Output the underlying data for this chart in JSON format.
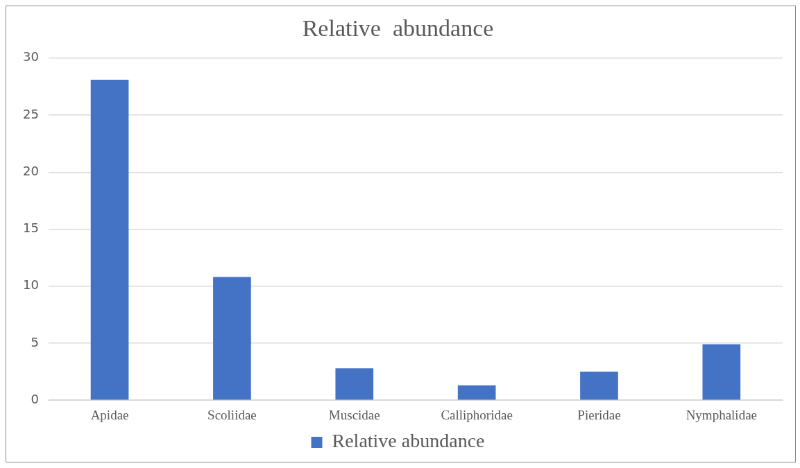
{
  "chart_data": {
    "type": "bar",
    "title": "Relative  abundance",
    "categories": [
      "Apidae",
      "Scoliidae",
      "Muscidae",
      "Calliphoridae",
      "Pieridae",
      "Nymphalidae"
    ],
    "series": [
      {
        "name": "Relative abundance",
        "color": "#4472c4",
        "values": [
          28.1,
          10.8,
          2.8,
          1.3,
          2.5,
          4.9
        ]
      }
    ],
    "ylim": [
      0,
      30
    ],
    "yticks": [
      0,
      5,
      10,
      15,
      20,
      25,
      30
    ],
    "grid": "y",
    "legend": "bottom"
  }
}
